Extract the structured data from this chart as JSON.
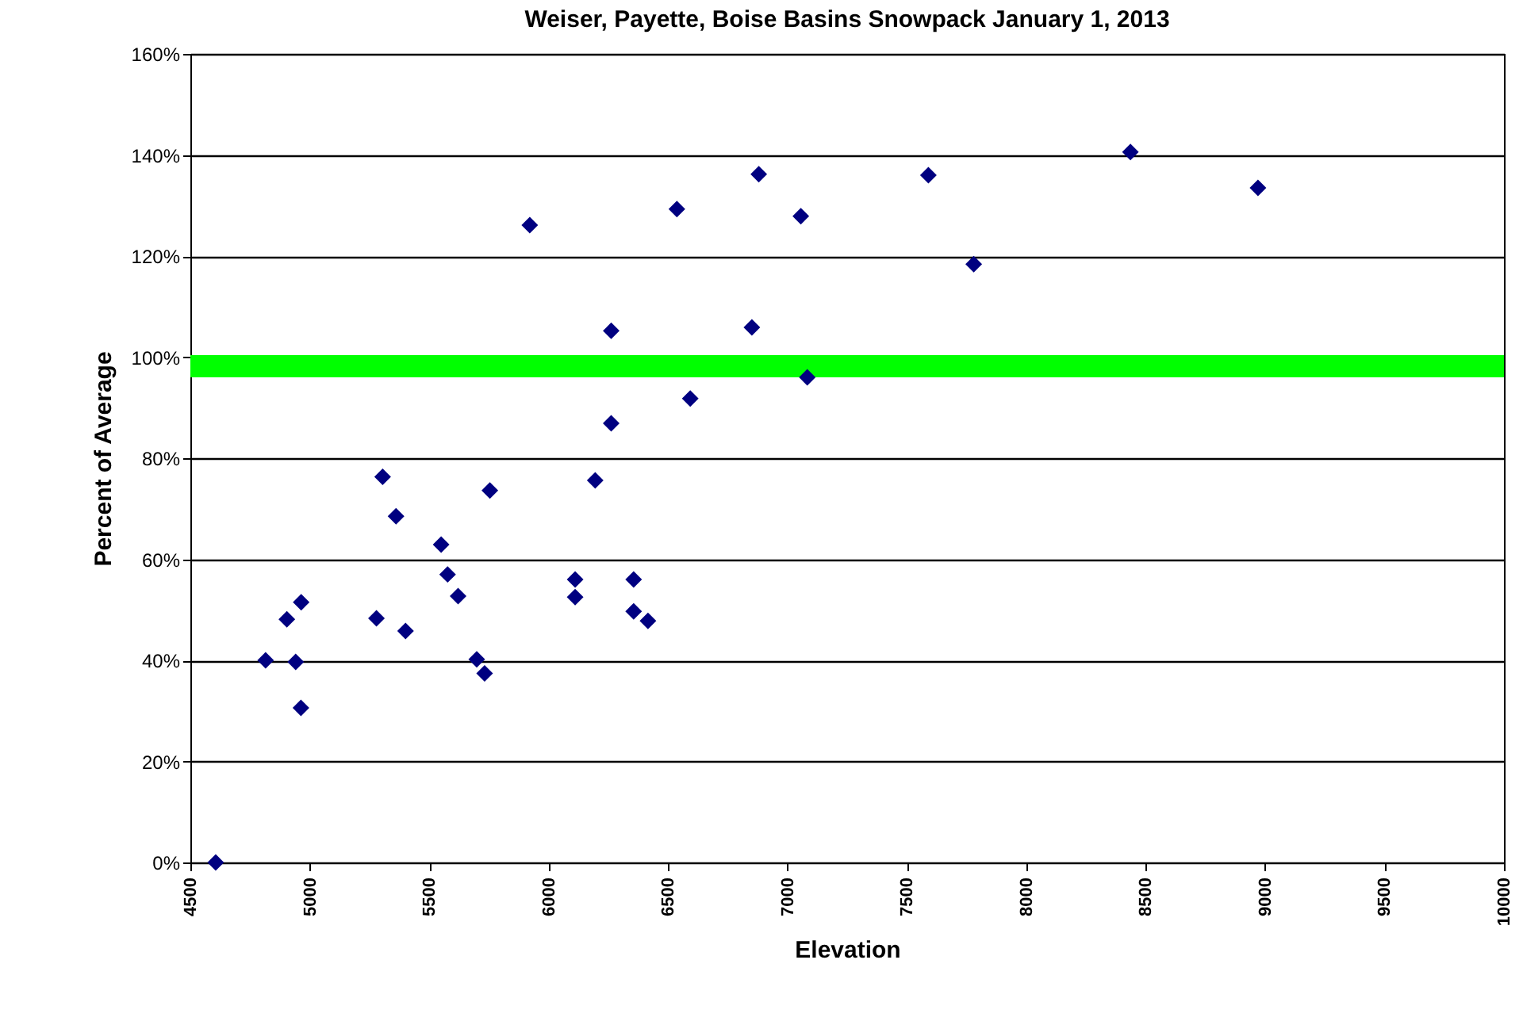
{
  "chart_data": {
    "type": "scatter",
    "title": "Weiser, Payette, Boise Basins Snowpack January 1, 2013",
    "xlabel": "Elevation",
    "ylabel": "Percent of Average",
    "x": [
      4606,
      4815,
      4941,
      4963,
      4904,
      4964,
      5279,
      5305,
      5361,
      5401,
      5550,
      5577,
      5621,
      5699,
      5732,
      5754,
      5921,
      6111,
      6111,
      6195,
      6262,
      6262,
      6356,
      6356,
      6416,
      6537,
      6593,
      6851,
      6880,
      7056,
      7083,
      7590,
      7780,
      8436,
      8970
    ],
    "series": [
      {
        "color": "#000080",
        "values": [
          0,
          40,
          39.7,
          30.6,
          48.1,
          51.5,
          48.3,
          76.3,
          68.5,
          45.8,
          62.9,
          57,
          52.7,
          40.2,
          37.4,
          73.6,
          126.1,
          56,
          52.5,
          75.6,
          105.2,
          86.9,
          56,
          49.7,
          47.8,
          129.3,
          91.8,
          105.9,
          136.2,
          127.9,
          96,
          136,
          118.4,
          140.6,
          133.5
        ]
      }
    ],
    "xlim": [
      4500,
      10000
    ],
    "xticks": [
      4500,
      5000,
      5500,
      6000,
      6500,
      7000,
      7500,
      8000,
      8500,
      9000,
      9500,
      10000
    ],
    "ylim": [
      0,
      160
    ],
    "yticks": [
      {
        "value": 0,
        "label": "0%"
      },
      {
        "value": 20,
        "label": "20%"
      },
      {
        "value": 40,
        "label": "40%"
      },
      {
        "value": 60,
        "label": "60%"
      },
      {
        "value": 80,
        "label": "80%"
      },
      {
        "value": 100,
        "label": "100%"
      },
      {
        "value": 120,
        "label": "120%"
      },
      {
        "value": 140,
        "label": "140%"
      },
      {
        "value": 160,
        "label": "160%"
      }
    ],
    "grid": "y",
    "marker": "diamond",
    "ref_lines": [
      {
        "axis": "y",
        "value": 98.2,
        "color": "#00ff00"
      }
    ]
  }
}
